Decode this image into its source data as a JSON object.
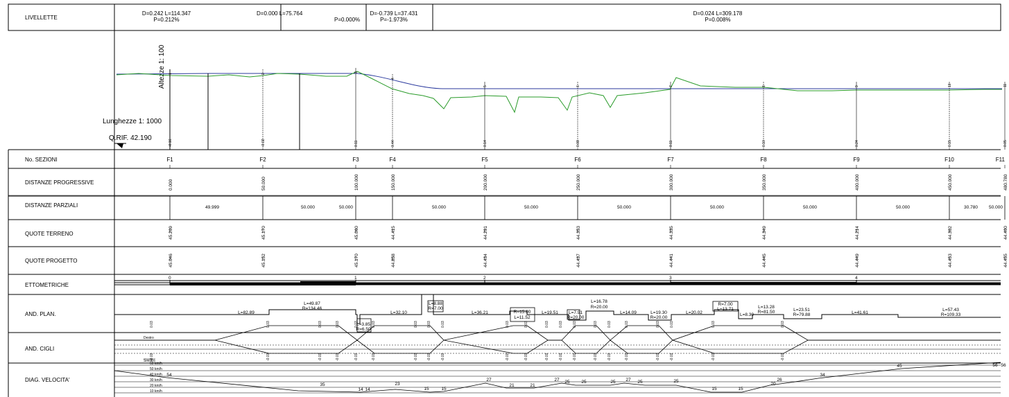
{
  "livellette": {
    "label": "LIVELLETTE",
    "segments": [
      {
        "line1": "D=0.242 L=114.347",
        "line2": "P=0.212%"
      },
      {
        "line1": "D=0.000 L=75.764",
        "line2": "P=0.000%"
      },
      {
        "line1": "D=-0.739 L=37.431",
        "line2": "P=-1.973%"
      },
      {
        "line1": "D=0.024 L=309.178",
        "line2": "P=0.008%"
      }
    ]
  },
  "profile": {
    "vertical_scale": "Altezze 1: 100",
    "horizontal_scale": "Lunghezze 1: 1000",
    "reference": "Q.RIF. 42.190",
    "section_ids": [
      "1",
      "2",
      "3",
      "4",
      "5",
      "6",
      "7",
      "8",
      "9",
      "10",
      "11"
    ],
    "differences": [
      "-0.16",
      "-0.02",
      "0.11",
      "0.44",
      "0.14",
      "0.08",
      "0.11",
      "0.10",
      "0.24",
      "0.15",
      "0.05"
    ]
  },
  "rows": {
    "sezioni": {
      "label": "No. SEZIONI",
      "values": [
        "F1",
        "F2",
        "F3",
        "F4",
        "F5",
        "F6",
        "F7",
        "F8",
        "F9",
        "F10",
        "F11"
      ]
    },
    "progressive": {
      "label": "DISTANZE PROGRESSIVE",
      "values": [
        "0.000",
        "50.000",
        "100.000",
        "150.000",
        "200.000",
        "250.000",
        "300.000",
        "350.000",
        "400.000",
        "450.000",
        "480.780"
      ]
    },
    "parziali": {
      "label": "DISTANZE PARZIALI",
      "values": [
        "49.999",
        "50.000",
        "50.000",
        "50.000",
        "50.000",
        "50.000",
        "50.000",
        "50.000",
        "50.000",
        "50.000",
        "30.780"
      ]
    },
    "terreno": {
      "label": "QUOTE TERRENO",
      "values": [
        "45.209",
        "45.170",
        "45.060",
        "44.415",
        "44.291",
        "44.353",
        "44.335",
        "44.349",
        "44.214",
        "44.302",
        "44.400"
      ]
    },
    "progetto": {
      "label": "QUOTE PROGETTO",
      "values": [
        "45.046",
        "45.152",
        "45.170",
        "44.858",
        "44.434",
        "44.437",
        "44.441",
        "44.445",
        "44.449",
        "44.453",
        "44.455"
      ]
    },
    "ettometriche": {
      "label": "ETTOMETRICHE",
      "values": [
        "0",
        "1",
        "2",
        "3",
        "4"
      ]
    },
    "plan": {
      "label": "AND. PLAN.",
      "items": [
        [
          "L=82.89"
        ],
        [
          "L=49.87",
          "R=134.46"
        ],
        [
          "L=3.85",
          "R=6.50"
        ],
        [
          "L=32.10"
        ],
        [
          "L=8.88",
          "R=7.00"
        ],
        [
          "L=36.21"
        ],
        [
          "R=15.00",
          "L=11.52"
        ],
        [
          "L=19.51"
        ],
        [
          "L=7.91",
          "R=20.00"
        ],
        [
          "L=16.78",
          "R=20.00"
        ],
        [
          "L=14.09"
        ],
        [
          "L=19.30",
          "R=20.00"
        ],
        [
          "L=20.02"
        ],
        [
          "R=7.00",
          "L=13.71"
        ],
        [
          "L=8.30"
        ],
        [
          "L=13.28",
          "R=81.50"
        ],
        [
          "L=23.51",
          "R=79.88"
        ],
        [
          "L=41.61"
        ],
        [
          "L=57.43",
          "R=109.33"
        ]
      ]
    },
    "cigli": {
      "label": "AND. CIGLI",
      "destro": "Destro",
      "sinistro": "Sinistro",
      "pos": "0.03",
      "neg": "-0.03"
    },
    "velocita": {
      "label": "DIAG. VELOCITA'",
      "scale": [
        "60 km/h",
        "50 km/h",
        "40 km/h",
        "30 km/h",
        "20 km/h",
        "10 km/h"
      ],
      "values": [
        "54",
        "35",
        "14",
        "14",
        "23",
        "15",
        "15",
        "27",
        "21",
        "21",
        "27",
        "25",
        "25",
        "25",
        "27",
        "25",
        "25",
        "15",
        "15",
        "20",
        "26",
        "34",
        "45",
        "56",
        "56"
      ]
    }
  }
}
